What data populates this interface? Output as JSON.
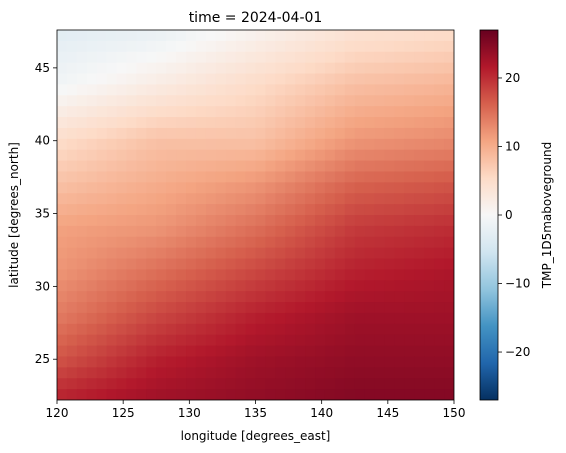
{
  "chart_data": {
    "type": "heatmap",
    "title": "time = 2024-04-01",
    "xlabel": "longitude [degrees_east]",
    "ylabel": "latitude [degrees_north]",
    "colorbar_label": "TMP_1D5maboveground",
    "colormap": "RdBu_r",
    "xlim": [
      120,
      150
    ],
    "ylim": [
      22.2,
      47.6
    ],
    "clim": [
      -27,
      27
    ],
    "x_ticks": [
      120,
      125,
      130,
      135,
      140,
      145,
      150
    ],
    "x_tick_labels": [
      "120",
      "125",
      "130",
      "135",
      "140",
      "145",
      "150"
    ],
    "y_ticks": [
      25,
      30,
      35,
      40,
      45
    ],
    "y_tick_labels": [
      "25",
      "30",
      "35",
      "40",
      "45"
    ],
    "colorbar_ticks": [
      -20,
      -10,
      0,
      10,
      20
    ],
    "colorbar_tick_labels": [
      "−20",
      "−10",
      "0",
      "10",
      "20"
    ],
    "grid": false,
    "value_field": {
      "lat_nodes": [
        47.5,
        44,
        40,
        37,
        34,
        31,
        28,
        25,
        22.2
      ],
      "lon_nodes": [
        120,
        127.5,
        135,
        142.5,
        150
      ],
      "values_c": [
        [
          -3,
          -2,
          1,
          4,
          5
        ],
        [
          -1,
          2,
          5,
          8,
          9
        ],
        [
          5,
          8,
          8,
          12,
          13
        ],
        [
          8,
          10,
          12,
          16,
          17
        ],
        [
          11,
          12,
          15,
          19,
          20
        ],
        [
          12,
          15,
          18,
          21,
          22
        ],
        [
          14,
          18,
          21,
          23,
          23
        ],
        [
          17,
          21,
          23,
          24,
          24
        ],
        [
          21,
          23,
          24,
          25,
          25
        ]
      ]
    }
  }
}
